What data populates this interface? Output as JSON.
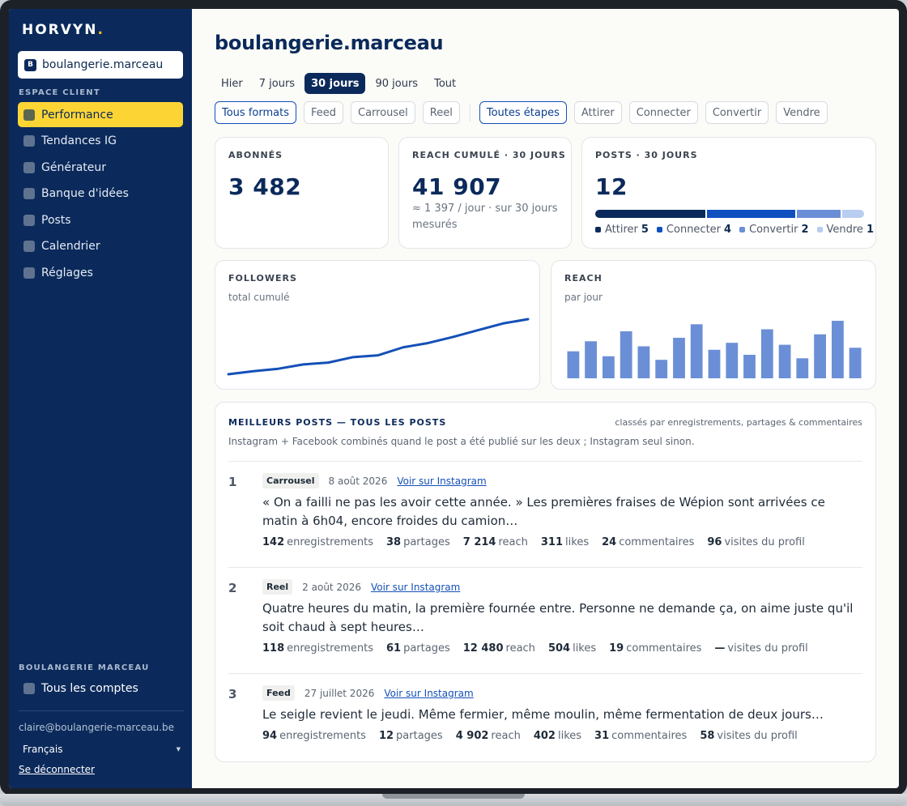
{
  "sidebar": {
    "logo": "HORVYN",
    "logo_dot": ".",
    "account": {
      "initial": "B",
      "name": "boulangerie.marceau"
    },
    "section_label": "ESPACE CLIENT",
    "nav": [
      {
        "label": "Performance",
        "active": true
      },
      {
        "label": "Tendances IG"
      },
      {
        "label": "Générateur"
      },
      {
        "label": "Banque d'idées"
      },
      {
        "label": "Posts"
      },
      {
        "label": "Calendrier"
      },
      {
        "label": "Réglages"
      }
    ],
    "org_label": "BOULANGERIE MARCEAU",
    "all_accounts": "Tous les comptes",
    "email": "claire@boulangerie-marceau.be",
    "language": "Français",
    "logout": "Se déconnecter"
  },
  "main": {
    "title": "boulangerie.marceau",
    "ranges": [
      "Hier",
      "7 jours",
      "30 jours",
      "90 jours",
      "Tout"
    ],
    "active_range": "30 jours",
    "formats": [
      "Tous formats",
      "Feed",
      "Carrousel",
      "Reel"
    ],
    "stages": [
      "Toutes étapes",
      "Attirer",
      "Connecter",
      "Convertir",
      "Vendre"
    ],
    "kpis": {
      "abonnes": {
        "label": "ABONNÉS",
        "value": "3 482"
      },
      "reach": {
        "label": "REACH CUMULÉ · 30 JOURS",
        "value": "41 907",
        "sub": "≈ 1 397 / jour · sur 30 jours mesurés"
      },
      "posts": {
        "label": "POSTS · 30 JOURS",
        "value": "12",
        "stages": [
          {
            "name": "Attirer",
            "count": 5,
            "color": "#0b2a5b"
          },
          {
            "name": "Connecter",
            "count": 4,
            "color": "#0f4fc0"
          },
          {
            "name": "Convertir",
            "count": 2,
            "color": "#6b8fd6"
          },
          {
            "name": "Vendre",
            "count": 1,
            "color": "#b9cdf0"
          }
        ]
      }
    },
    "followers_chart": {
      "label": "FOLLOWERS",
      "sub": "total cumulé"
    },
    "reach_chart": {
      "label": "REACH",
      "sub": "par jour"
    },
    "best": {
      "title": "MEILLEURS POSTS — TOUS LES POSTS",
      "right": "classés par enregistrements, partages & commentaires",
      "note": "Instagram + Facebook combinés quand le post a été publié sur les deux ; Instagram seul sinon.",
      "posts": [
        {
          "rank": "1",
          "format": "Carrousel",
          "date": "8 août 2026",
          "link": "Voir sur Instagram",
          "text": "« On a failli ne pas les avoir cette année. » Les premières fraises de Wépion sont arrivées ce matin à 6h04, encore froides du camion…",
          "stats": [
            {
              "v": "142",
              "l": "enregistrements"
            },
            {
              "v": "38",
              "l": "partages"
            },
            {
              "v": "7 214",
              "l": "reach"
            },
            {
              "v": "311",
              "l": "likes"
            },
            {
              "v": "24",
              "l": "commentaires"
            },
            {
              "v": "96",
              "l": "visites du profil"
            }
          ]
        },
        {
          "rank": "2",
          "format": "Reel",
          "date": "2 août 2026",
          "link": "Voir sur Instagram",
          "text": "Quatre heures du matin, la première fournée entre. Personne ne demande ça, on aime juste qu'il soit chaud à sept heures…",
          "stats": [
            {
              "v": "118",
              "l": "enregistrements"
            },
            {
              "v": "61",
              "l": "partages"
            },
            {
              "v": "12 480",
              "l": "reach"
            },
            {
              "v": "504",
              "l": "likes"
            },
            {
              "v": "19",
              "l": "commentaires"
            },
            {
              "v": "—",
              "l": "visites du profil"
            }
          ]
        },
        {
          "rank": "3",
          "format": "Feed",
          "date": "27 juillet 2026",
          "link": "Voir sur Instagram",
          "text": "Le seigle revient le jeudi. Même fermier, même moulin, même fermentation de deux jours…",
          "stats": [
            {
              "v": "94",
              "l": "enregistrements"
            },
            {
              "v": "12",
              "l": "partages"
            },
            {
              "v": "4 902",
              "l": "reach"
            },
            {
              "v": "402",
              "l": "likes"
            },
            {
              "v": "31",
              "l": "commentaires"
            },
            {
              "v": "58",
              "l": "visites du profil"
            }
          ]
        }
      ]
    }
  },
  "chart_data": [
    {
      "type": "line",
      "x": [
        1,
        2,
        3,
        4,
        5,
        6,
        7,
        8,
        9,
        10,
        11,
        12,
        13
      ],
      "series": [
        {
          "values": [
            3370,
            3375,
            3379,
            3386,
            3389,
            3398,
            3401,
            3414,
            3421,
            3431,
            3442,
            3453,
            3460
          ]
        }
      ],
      "color": "#1450b8",
      "grid": false
    },
    {
      "type": "bar",
      "x": [
        1,
        2,
        3,
        4,
        5,
        6,
        7,
        8,
        9,
        10,
        11,
        12,
        13,
        14,
        15,
        16,
        17
      ],
      "values": [
        1080,
        1480,
        880,
        1880,
        1280,
        740,
        1620,
        2160,
        1140,
        1420,
        940,
        1960,
        1340,
        800,
        1760,
        2300,
        1220
      ],
      "color": "#6b8fd6",
      "grid": false
    }
  ]
}
